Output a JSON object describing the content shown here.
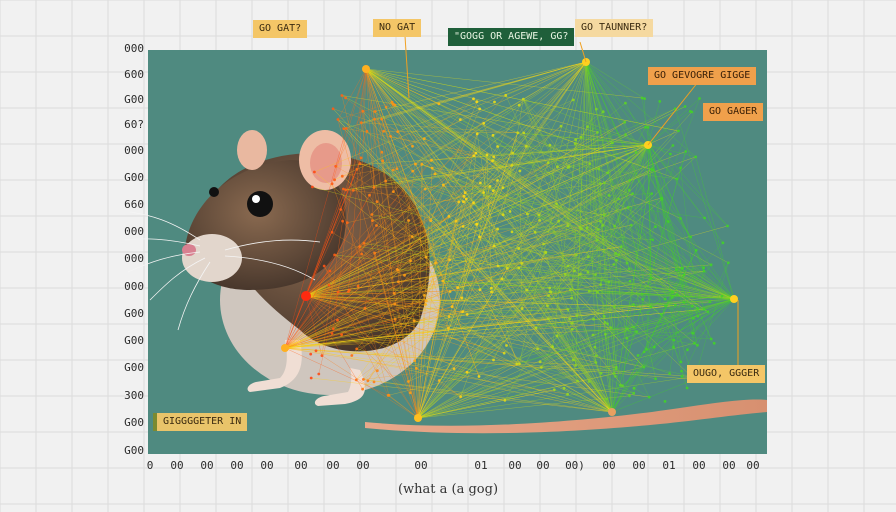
{
  "chart_data": {
    "type": "network",
    "title": "",
    "xlabel": "(what a (a gog)",
    "ylabel": "",
    "y_tick_labels": [
      "000",
      "600",
      "G00",
      "60?",
      "000",
      "G00",
      "660",
      "000",
      "000",
      "000",
      "G00",
      "G00",
      "G00",
      "300",
      "G00",
      "G00"
    ],
    "x_tick_labels": [
      "0",
      "00",
      "00",
      "00",
      "00",
      "00",
      "00",
      "00",
      "00",
      "01",
      "00",
      "00",
      "00)",
      "00",
      "00",
      "01",
      "00",
      "00",
      "00"
    ],
    "annotations": [
      {
        "id": "ann1",
        "text": "GO GAT?",
        "style": "yellow"
      },
      {
        "id": "ann2",
        "text": "NO  GAT",
        "style": "yellow"
      },
      {
        "id": "ann3",
        "text": "\"GOGG OR AGEWE, GG?",
        "style": "green"
      },
      {
        "id": "ann4",
        "text": "GO TAUNNER?",
        "style": "sand"
      },
      {
        "id": "ann5",
        "text": "GO GEVOGRE GIGGE",
        "style": "orange"
      },
      {
        "id": "ann6",
        "text": "GO  GAGER",
        "style": "orange"
      },
      {
        "id": "ann7",
        "text": "OUGO, GGGER",
        "style": "yellow"
      },
      {
        "id": "ann8",
        "text": "GIGGGGETER  IN",
        "style": "khaki"
      }
    ],
    "grid": true,
    "legend": "none",
    "colors": {
      "plot_bg": "#4f8a80",
      "hub_red": "#ff2a10",
      "hub_yellow": "#ffd020",
      "hub_green": "#40d020",
      "accent_orange": "#f08a20"
    }
  }
}
